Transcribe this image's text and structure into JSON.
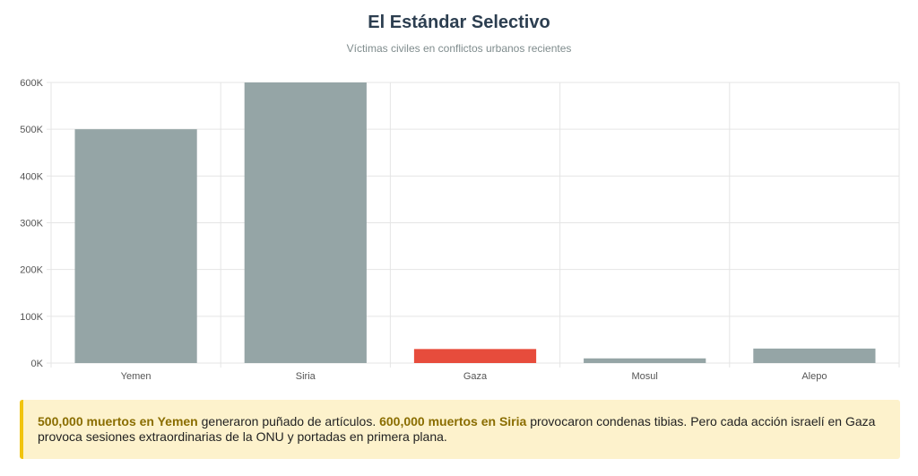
{
  "title": "El Estándar Selectivo",
  "subtitle": "Víctimas civiles en conflictos urbanos recientes",
  "colors": {
    "default_bar": "#95a5a6",
    "highlight_bar": "#e74c3c",
    "grid": "#e5e5e5",
    "tick_text": "#555555",
    "callout_bg": "#fdf2cc",
    "callout_border": "#f1c40f",
    "callout_highlight": "#8a6d00"
  },
  "chart_data": {
    "type": "bar",
    "title": "El Estándar Selectivo",
    "subtitle": "Víctimas civiles en conflictos urbanos recientes",
    "categories": [
      "Yemen",
      "Siria",
      "Gaza",
      "Mosul",
      "Alepo"
    ],
    "values": [
      500000,
      600000,
      30000,
      10000,
      31000
    ],
    "highlight_category": "Gaza",
    "ylim": [
      0,
      600000
    ],
    "y_ticks": [
      0,
      100000,
      200000,
      300000,
      400000,
      500000,
      600000
    ],
    "y_tick_labels": [
      "0K",
      "100K",
      "200K",
      "300K",
      "400K",
      "500K",
      "600K"
    ],
    "grid": true,
    "legend": "none"
  },
  "callout": {
    "hl1": "500,000 muertos en Yemen",
    "t1": " generaron puñado de artículos. ",
    "hl2": "600,000 muertos en Siria",
    "t2": " provocaron condenas tibias. Pero cada acción israelí en Gaza provoca sesiones extraordinarias de la ONU y portadas en primera plana."
  }
}
